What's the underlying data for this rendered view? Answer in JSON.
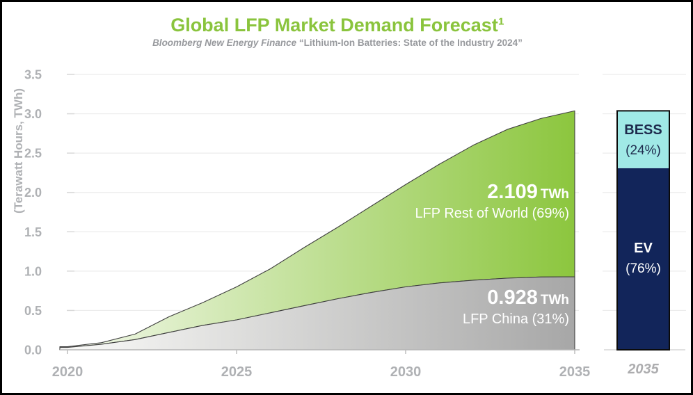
{
  "page": {
    "title": "Global LFP Market Demand Forecast¹",
    "subtitle_source": "Bloomberg New Energy Finance",
    "subtitle_quote": "“Lithium-Ion Batteries: State of the Industry 2024”"
  },
  "colors": {
    "title_green": "#8AC43D",
    "subtitle_gray": "#97999D",
    "axis_text": "#AFB1B4",
    "grid": "#ECECEC",
    "grid_tick": "#D9D9D9",
    "baseline": "#B5B5B5",
    "outline": "#3F3F3F",
    "area_green_start": "#F4F9ED",
    "area_green_end": "#8CC63E",
    "area_gray_start": "#FBFBF9",
    "area_gray_end": "#A7A7A7",
    "bess_fill": "#A0E9E6",
    "bess_text": "#1E2B4D",
    "ev_fill": "#12255A",
    "bar_border": "#0B0B0B"
  },
  "chart_data": {
    "type": "area",
    "stacked": true,
    "title": "Global LFP Market Demand Forecast¹",
    "subtitle": "Bloomberg New Energy Finance “Lithium-Ion Batteries: State of the Industry 2024”",
    "ylabel": "(Terawatt Hours, TWh)",
    "ylim": [
      0,
      3.5
    ],
    "ytick_step": 0.5,
    "yticks": [
      "0.0",
      "0.5",
      "1.0",
      "1.5",
      "2.0",
      "2.5",
      "3.0",
      "3.5"
    ],
    "x": [
      2020,
      2021,
      2022,
      2023,
      2024,
      2025,
      2026,
      2027,
      2028,
      2029,
      2030,
      2031,
      2032,
      2033,
      2034,
      2035
    ],
    "xticks": [
      "2020",
      "2025",
      "2030",
      "2035"
    ],
    "grid": true,
    "legend": "none",
    "series": [
      {
        "name": "LFP China",
        "values": [
          0.03,
          0.07,
          0.13,
          0.22,
          0.31,
          0.38,
          0.47,
          0.56,
          0.65,
          0.73,
          0.8,
          0.85,
          0.885,
          0.91,
          0.925,
          0.928
        ]
      },
      {
        "name": "LFP Rest of World",
        "values": [
          0.01,
          0.02,
          0.07,
          0.2,
          0.29,
          0.42,
          0.56,
          0.74,
          0.91,
          1.1,
          1.3,
          1.51,
          1.715,
          1.89,
          2.015,
          2.109
        ]
      }
    ],
    "annotations": [
      {
        "value": "2.109",
        "unit": "TWh",
        "label": "LFP Rest of World (69%)"
      },
      {
        "value": "0.928",
        "unit": "TWh",
        "label": "LFP China (31%)"
      }
    ]
  },
  "bar_chart": {
    "type": "bar",
    "stacked": true,
    "xlabel": "2035",
    "total_twh": 3.037,
    "segments": [
      {
        "name": "EV",
        "pct_label": "(76%)",
        "fraction": 0.76,
        "color": "#12255A"
      },
      {
        "name": "BESS",
        "pct_label": "(24%)",
        "fraction": 0.24,
        "color": "#A0E9E6"
      }
    ]
  }
}
